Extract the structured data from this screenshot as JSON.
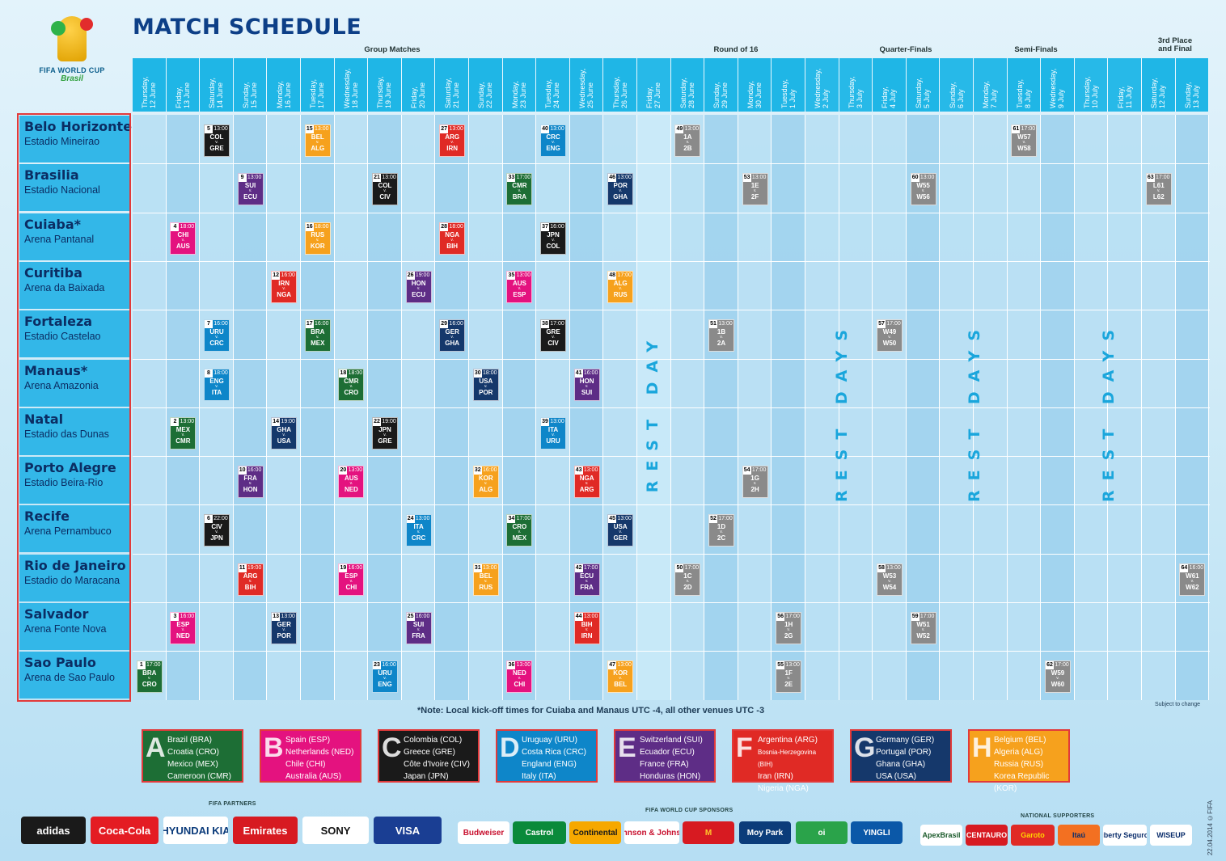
{
  "header": {
    "title": "MATCH SCHEDULE",
    "logo_line1": "FIFA WORLD CUP",
    "logo_line2": "Brasil"
  },
  "stages": [
    {
      "label": "Group Matches",
      "key": "group"
    },
    {
      "label": "Round of 16",
      "key": "r16"
    },
    {
      "label": "Quarter-Finals",
      "key": "qf"
    },
    {
      "label": "Semi-Finals",
      "key": "sf"
    },
    {
      "label": "3rd Place\nand Final",
      "key": "final"
    }
  ],
  "dates": [
    "Thursday,\n12 June",
    "Friday,\n13 June",
    "Saturday,\n14 June",
    "Sunday,\n15 June",
    "Monday,\n16 June",
    "Tuesday,\n17 June",
    "Wednesday,\n18 June",
    "Thursday,\n19 June",
    "Friday,\n20 June",
    "Saturday,\n21 June",
    "Sunday,\n22 June",
    "Monday,\n23 June",
    "Tuesday,\n24 June",
    "Wednesday,\n25 June",
    "Thursday,\n26 June",
    "Friday,\n27 June",
    "Saturday,\n28 June",
    "Sunday,\n29 June",
    "Monday,\n30 June",
    "Tuesday,\n1 July",
    "Wednesday,\n2 July",
    "Thursday,\n3 July",
    "Friday,\n4 July",
    "Saturday,\n5 July",
    "Sunday,\n6 July",
    "Monday,\n7 July",
    "Tuesday,\n8 July",
    "Wednesday,\n9 July",
    "Thursday,\n10 July",
    "Friday,\n11 July",
    "Saturday,\n12 July",
    "Sunday,\n13 July"
  ],
  "venues": [
    {
      "city": "Belo Horizonte",
      "stadium": "Estadio Mineirao"
    },
    {
      "city": "Brasilia",
      "stadium": "Estadio Nacional"
    },
    {
      "city": "Cuiaba*",
      "stadium": "Arena Pantanal"
    },
    {
      "city": "Curitiba",
      "stadium": "Arena da Baixada"
    },
    {
      "city": "Fortaleza",
      "stadium": "Estadio Castelao"
    },
    {
      "city": "Manaus*",
      "stadium": "Arena Amazonia"
    },
    {
      "city": "Natal",
      "stadium": "Estadio das Dunas"
    },
    {
      "city": "Porto Alegre",
      "stadium": "Estadio Beira-Rio"
    },
    {
      "city": "Recife",
      "stadium": "Arena Pernambuco"
    },
    {
      "city": "Rio de Janeiro",
      "stadium": "Estadio do Maracana"
    },
    {
      "city": "Salvador",
      "stadium": "Arena Fonte Nova"
    },
    {
      "city": "Sao Paulo",
      "stadium": "Arena de Sao Paulo"
    }
  ],
  "rest_labels": [
    "REST DAY",
    "REST DAYS",
    "REST DAYS",
    "REST DAYS"
  ],
  "group_colors": {
    "A": "#1d6e35",
    "B": "#e4127f",
    "C": "#1a1a1a",
    "D": "#0e86c9",
    "E": "#5e2d86",
    "F": "#e02a25",
    "G": "#15386b",
    "H": "#f6a11d",
    "K": "#8a8a8a"
  },
  "matches": [
    {
      "n": "5",
      "time": "13:00",
      "t1": "COL",
      "t2": "GRE",
      "v": 0,
      "c": 2,
      "g": "C"
    },
    {
      "n": "15",
      "time": "13:00",
      "t1": "BEL",
      "t2": "ALG",
      "v": 0,
      "c": 5,
      "g": "H"
    },
    {
      "n": "27",
      "time": "13:00",
      "t1": "ARG",
      "t2": "IRN",
      "v": 0,
      "c": 9,
      "g": "F"
    },
    {
      "n": "40",
      "time": "13:00",
      "t1": "CRC",
      "t2": "ENG",
      "v": 0,
      "c": 12,
      "g": "D"
    },
    {
      "n": "49",
      "time": "13:00",
      "t1": "1A",
      "t2": "2B",
      "v": 0,
      "c": 16,
      "g": "K"
    },
    {
      "n": "61",
      "time": "17:00",
      "t1": "W57",
      "t2": "W58",
      "v": 0,
      "c": 26,
      "g": "K"
    },
    {
      "n": "9",
      "time": "13:00",
      "t1": "SUI",
      "t2": "ECU",
      "v": 1,
      "c": 3,
      "g": "E"
    },
    {
      "n": "21",
      "time": "13:00",
      "t1": "COL",
      "t2": "CIV",
      "v": 1,
      "c": 7,
      "g": "C"
    },
    {
      "n": "33",
      "time": "17:00",
      "t1": "CMR",
      "t2": "BRA",
      "v": 1,
      "c": 11,
      "g": "A"
    },
    {
      "n": "46",
      "time": "13:00",
      "t1": "POR",
      "t2": "GHA",
      "v": 1,
      "c": 14,
      "g": "G"
    },
    {
      "n": "53",
      "time": "13:00",
      "t1": "1E",
      "t2": "2F",
      "v": 1,
      "c": 18,
      "g": "K"
    },
    {
      "n": "60",
      "time": "13:00",
      "t1": "W55",
      "t2": "W56",
      "v": 1,
      "c": 23,
      "g": "K"
    },
    {
      "n": "63",
      "time": "17:00",
      "t1": "L61",
      "t2": "L62",
      "v": 1,
      "c": 30,
      "g": "K"
    },
    {
      "n": "4",
      "time": "18:00",
      "t1": "CHI",
      "t2": "AUS",
      "v": 2,
      "c": 1,
      "g": "B"
    },
    {
      "n": "16",
      "time": "18:00",
      "t1": "RUS",
      "t2": "KOR",
      "v": 2,
      "c": 5,
      "g": "H"
    },
    {
      "n": "28",
      "time": "18:00",
      "t1": "NGA",
      "t2": "BIH",
      "v": 2,
      "c": 9,
      "g": "F"
    },
    {
      "n": "37",
      "time": "16:00",
      "t1": "JPN",
      "t2": "COL",
      "v": 2,
      "c": 12,
      "g": "C"
    },
    {
      "n": "12",
      "time": "16:00",
      "t1": "IRN",
      "t2": "NGA",
      "v": 3,
      "c": 4,
      "g": "F"
    },
    {
      "n": "26",
      "time": "19:00",
      "t1": "HON",
      "t2": "ECU",
      "v": 3,
      "c": 8,
      "g": "E"
    },
    {
      "n": "35",
      "time": "13:00",
      "t1": "AUS",
      "t2": "ESP",
      "v": 3,
      "c": 11,
      "g": "B"
    },
    {
      "n": "48",
      "time": "17:00",
      "t1": "ALG",
      "t2": "RUS",
      "v": 3,
      "c": 14,
      "g": "H"
    },
    {
      "n": "7",
      "time": "16:00",
      "t1": "URU",
      "t2": "CRC",
      "v": 4,
      "c": 2,
      "g": "D"
    },
    {
      "n": "17",
      "time": "16:00",
      "t1": "BRA",
      "t2": "MEX",
      "v": 4,
      "c": 5,
      "g": "A"
    },
    {
      "n": "29",
      "time": "16:00",
      "t1": "GER",
      "t2": "GHA",
      "v": 4,
      "c": 9,
      "g": "G"
    },
    {
      "n": "38",
      "time": "17:00",
      "t1": "GRE",
      "t2": "CIV",
      "v": 4,
      "c": 12,
      "g": "C"
    },
    {
      "n": "51",
      "time": "13:00",
      "t1": "1B",
      "t2": "2A",
      "v": 4,
      "c": 17,
      "g": "K"
    },
    {
      "n": "57",
      "time": "17:00",
      "t1": "W49",
      "t2": "W50",
      "v": 4,
      "c": 22,
      "g": "K"
    },
    {
      "n": "8",
      "time": "18:00",
      "t1": "ENG",
      "t2": "ITA",
      "v": 5,
      "c": 2,
      "g": "D"
    },
    {
      "n": "18",
      "time": "18:00",
      "t1": "CMR",
      "t2": "CRO",
      "v": 5,
      "c": 6,
      "g": "A"
    },
    {
      "n": "30",
      "time": "18:00",
      "t1": "USA",
      "t2": "POR",
      "v": 5,
      "c": 10,
      "g": "G"
    },
    {
      "n": "41",
      "time": "16:00",
      "t1": "HON",
      "t2": "SUI",
      "v": 5,
      "c": 13,
      "g": "E"
    },
    {
      "n": "2",
      "time": "13:00",
      "t1": "MEX",
      "t2": "CMR",
      "v": 6,
      "c": 1,
      "g": "A"
    },
    {
      "n": "14",
      "time": "19:00",
      "t1": "GHA",
      "t2": "USA",
      "v": 6,
      "c": 4,
      "g": "G"
    },
    {
      "n": "22",
      "time": "19:00",
      "t1": "JPN",
      "t2": "GRE",
      "v": 6,
      "c": 7,
      "g": "C"
    },
    {
      "n": "39",
      "time": "13:00",
      "t1": "ITA",
      "t2": "URU",
      "v": 6,
      "c": 12,
      "g": "D"
    },
    {
      "n": "10",
      "time": "16:00",
      "t1": "FRA",
      "t2": "HON",
      "v": 7,
      "c": 3,
      "g": "E"
    },
    {
      "n": "20",
      "time": "13:00",
      "t1": "AUS",
      "t2": "NED",
      "v": 7,
      "c": 6,
      "g": "B"
    },
    {
      "n": "32",
      "time": "16:00",
      "t1": "KOR",
      "t2": "ALG",
      "v": 7,
      "c": 10,
      "g": "H"
    },
    {
      "n": "43",
      "time": "13:00",
      "t1": "NGA",
      "t2": "ARG",
      "v": 7,
      "c": 13,
      "g": "F"
    },
    {
      "n": "54",
      "time": "17:00",
      "t1": "1G",
      "t2": "2H",
      "v": 7,
      "c": 18,
      "g": "K"
    },
    {
      "n": "6",
      "time": "22:00",
      "t1": "CIV",
      "t2": "JPN",
      "v": 8,
      "c": 2,
      "g": "C"
    },
    {
      "n": "24",
      "time": "13:00",
      "t1": "ITA",
      "t2": "CRC",
      "v": 8,
      "c": 8,
      "g": "D"
    },
    {
      "n": "34",
      "time": "17:00",
      "t1": "CRO",
      "t2": "MEX",
      "v": 8,
      "c": 11,
      "g": "A"
    },
    {
      "n": "45",
      "time": "13:00",
      "t1": "USA",
      "t2": "GER",
      "v": 8,
      "c": 14,
      "g": "G"
    },
    {
      "n": "52",
      "time": "17:00",
      "t1": "1D",
      "t2": "2C",
      "v": 8,
      "c": 17,
      "g": "K"
    },
    {
      "n": "11",
      "time": "19:00",
      "t1": "ARG",
      "t2": "BIH",
      "v": 9,
      "c": 3,
      "g": "F"
    },
    {
      "n": "19",
      "time": "16:00",
      "t1": "ESP",
      "t2": "CHI",
      "v": 9,
      "c": 6,
      "g": "B"
    },
    {
      "n": "31",
      "time": "13:00",
      "t1": "BEL",
      "t2": "RUS",
      "v": 9,
      "c": 10,
      "g": "H"
    },
    {
      "n": "42",
      "time": "17:00",
      "t1": "ECU",
      "t2": "FRA",
      "v": 9,
      "c": 13,
      "g": "E"
    },
    {
      "n": "50",
      "time": "17:00",
      "t1": "1C",
      "t2": "2D",
      "v": 9,
      "c": 16,
      "g": "K"
    },
    {
      "n": "58",
      "time": "13:00",
      "t1": "W53",
      "t2": "W54",
      "v": 9,
      "c": 22,
      "g": "K"
    },
    {
      "n": "64",
      "time": "16:00",
      "t1": "W61",
      "t2": "W62",
      "v": 9,
      "c": 31,
      "g": "K"
    },
    {
      "n": "3",
      "time": "16:00",
      "t1": "ESP",
      "t2": "NED",
      "v": 10,
      "c": 1,
      "g": "B"
    },
    {
      "n": "13",
      "time": "13:00",
      "t1": "GER",
      "t2": "POR",
      "v": 10,
      "c": 4,
      "g": "G"
    },
    {
      "n": "25",
      "time": "16:00",
      "t1": "SUI",
      "t2": "FRA",
      "v": 10,
      "c": 8,
      "g": "E"
    },
    {
      "n": "44",
      "time": "13:00",
      "t1": "BIH",
      "t2": "IRN",
      "v": 10,
      "c": 13,
      "g": "F"
    },
    {
      "n": "56",
      "time": "17:00",
      "t1": "1H",
      "t2": "2G",
      "v": 10,
      "c": 19,
      "g": "K"
    },
    {
      "n": "59",
      "time": "17:00",
      "t1": "W51",
      "t2": "W52",
      "v": 10,
      "c": 23,
      "g": "K"
    },
    {
      "n": "1",
      "time": "17:00",
      "t1": "BRA",
      "t2": "CRO",
      "v": 11,
      "c": 0,
      "g": "A"
    },
    {
      "n": "23",
      "time": "16:00",
      "t1": "URU",
      "t2": "ENG",
      "v": 11,
      "c": 7,
      "g": "D"
    },
    {
      "n": "36",
      "time": "13:00",
      "t1": "NED",
      "t2": "CHI",
      "v": 11,
      "c": 11,
      "g": "B"
    },
    {
      "n": "47",
      "time": "13:00",
      "t1": "KOR",
      "t2": "BEL",
      "v": 11,
      "c": 14,
      "g": "H"
    },
    {
      "n": "55",
      "time": "13:00",
      "t1": "1F",
      "t2": "2E",
      "v": 11,
      "c": 19,
      "g": "K"
    },
    {
      "n": "62",
      "time": "17:00",
      "t1": "W59",
      "t2": "W60",
      "v": 11,
      "c": 27,
      "g": "K"
    }
  ],
  "vs_label": "v.",
  "note": "*Note: Local kick-off times for Cuiaba and Manaus UTC -4, all other venues UTC -3",
  "subject_to_change": "Subject to change",
  "groups": [
    {
      "letter": "A",
      "teams": [
        "Brazil (BRA)",
        "Croatia (CRO)",
        "Mexico (MEX)",
        "Cameroon (CMR)"
      ]
    },
    {
      "letter": "B",
      "teams": [
        "Spain (ESP)",
        "Netherlands (NED)",
        "Chile (CHI)",
        "Australia (AUS)"
      ]
    },
    {
      "letter": "C",
      "teams": [
        "Colombia (COL)",
        "Greece (GRE)",
        "Côte d'Ivoire (CIV)",
        "Japan (JPN)"
      ]
    },
    {
      "letter": "D",
      "teams": [
        "Uruguay (URU)",
        "Costa Rica (CRC)",
        "England (ENG)",
        "Italy (ITA)"
      ]
    },
    {
      "letter": "E",
      "teams": [
        "Switzerland (SUI)",
        "Ecuador (ECU)",
        "France (FRA)",
        "Honduras (HON)"
      ]
    },
    {
      "letter": "F",
      "teams": [
        "Argentina (ARG)",
        "Bosnia-Herzegovina (BIH)",
        "Iran (IRN)",
        "Nigeria (NGA)"
      ]
    },
    {
      "letter": "G",
      "teams": [
        "Germany (GER)",
        "Portugal (POR)",
        "Ghana (GHA)",
        "USA (USA)"
      ]
    },
    {
      "letter": "H",
      "teams": [
        "Belgium (BEL)",
        "Algeria (ALG)",
        "Russia (RUS)",
        "Korea Republic (KOR)"
      ]
    }
  ],
  "sponsor_labels": {
    "partners": "FIFA PARTNERS",
    "wc_sponsors": "FIFA WORLD CUP SPONSORS",
    "national": "NATIONAL SUPPORTERS"
  },
  "sponsors": [
    {
      "name": "adidas",
      "bg": "#1a1a1a",
      "fg": "#ffffff"
    },
    {
      "name": "Coca-Cola",
      "bg": "#e41c23",
      "fg": "#ffffff"
    },
    {
      "name": "HYUNDAI KIA",
      "bg": "#ffffff",
      "fg": "#0a3a7a"
    },
    {
      "name": "Emirates",
      "bg": "#d71a21",
      "fg": "#ffffff"
    },
    {
      "name": "SONY",
      "bg": "#ffffff",
      "fg": "#111111"
    },
    {
      "name": "VISA",
      "bg": "#1a3e93",
      "fg": "#ffffff"
    },
    {
      "name": "Budweiser",
      "bg": "#ffffff",
      "fg": "#c8102e"
    },
    {
      "name": "Castrol",
      "bg": "#0a8a3a",
      "fg": "#ffffff"
    },
    {
      "name": "Continental",
      "bg": "#f6a800",
      "fg": "#1a1a1a"
    },
    {
      "name": "Johnson & Johnson",
      "bg": "#ffffff",
      "fg": "#c8102e"
    },
    {
      "name": "M",
      "bg": "#d71a21",
      "fg": "#ffc72c"
    },
    {
      "name": "Moy Park",
      "bg": "#0b3c7a",
      "fg": "#ffffff"
    },
    {
      "name": "oi",
      "bg": "#2aa34a",
      "fg": "#ffffff"
    },
    {
      "name": "YINGLI",
      "bg": "#0b58a8",
      "fg": "#ffffff"
    },
    {
      "name": "ApexBrasil",
      "bg": "#ffffff",
      "fg": "#1a5a2a"
    },
    {
      "name": "CENTAURO",
      "bg": "#d71a21",
      "fg": "#ffffff"
    },
    {
      "name": "Garoto",
      "bg": "#e02a25",
      "fg": "#ffd400"
    },
    {
      "name": "Itaú",
      "bg": "#f37021",
      "fg": "#0a2d6b"
    },
    {
      "name": "Liberty Seguros",
      "bg": "#ffffff",
      "fg": "#0a2d6b"
    },
    {
      "name": "WISEUP",
      "bg": "#ffffff",
      "fg": "#0a2d6b"
    }
  ],
  "stamp": "22.04.2014   ©FIFA"
}
